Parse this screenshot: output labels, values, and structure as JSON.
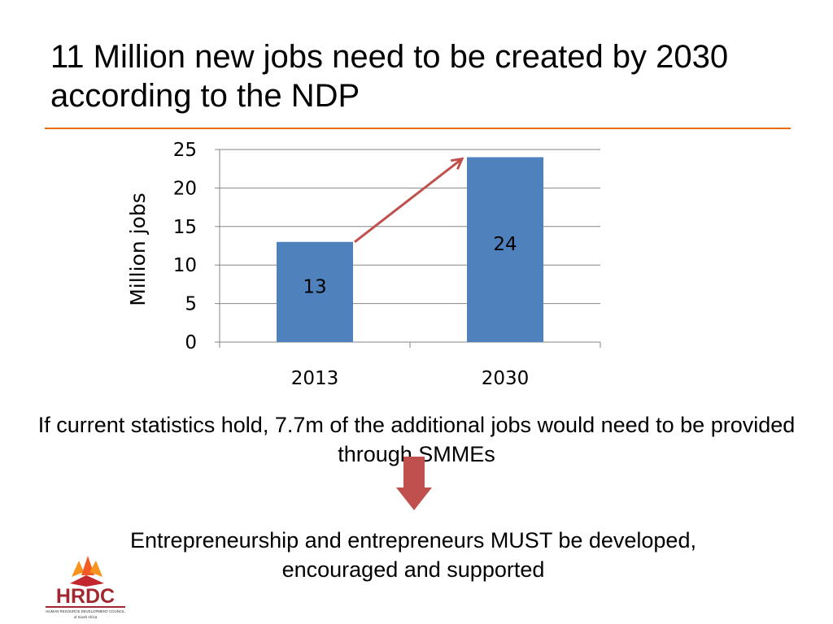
{
  "slide": {
    "title": "11 Million new jobs need to be created by 2030 according to the NDP",
    "caption_top": "If current statistics hold, 7.7m of the additional jobs would need to be provided through SMMEs",
    "caption_bottom": "Entrepreneurship and entrepreneurs MUST be developed, encouraged and supported",
    "accent_color": "#E46C0A"
  },
  "chart_data": {
    "type": "bar",
    "categories": [
      "2013",
      "2030"
    ],
    "values": [
      13,
      24
    ],
    "data_labels": [
      "13",
      "24"
    ],
    "ylabel": "Million jobs",
    "ylim": [
      0,
      25
    ],
    "yticks": [
      0,
      5,
      10,
      15,
      20,
      25
    ],
    "grid": true,
    "bar_color": "#4F81BD",
    "annotation": "arrow from 2013 bar to 2030 bar",
    "arrow_color": "#C0504D"
  },
  "logo": {
    "text": "HRDC",
    "subtitle": "HUMAN RESOURCE DEVELOPMENT COUNCIL",
    "tagline": "of South Africa",
    "icon": "flame-icon"
  },
  "down_arrow": {
    "icon": "down-arrow-icon",
    "color": "#C0504D"
  }
}
